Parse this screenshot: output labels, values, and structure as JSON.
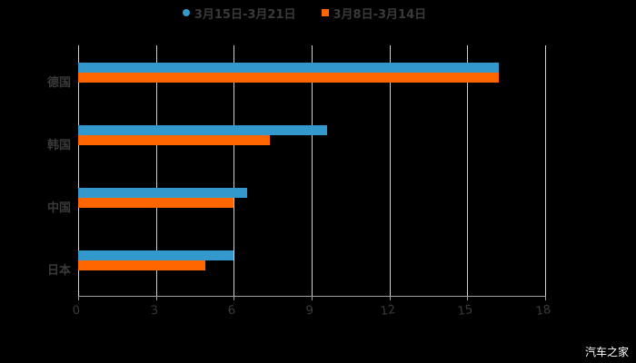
{
  "chart_data": {
    "type": "bar",
    "orientation": "horizontal",
    "title": "",
    "xlabel": "",
    "ylabel": "",
    "categories": [
      "德国",
      "韩国",
      "中国",
      "日本"
    ],
    "series": [
      {
        "name": "3月15日-3月21日",
        "color": "#3399cc",
        "values": [
          16.2,
          9.6,
          6.5,
          6.0
        ]
      },
      {
        "name": "3月8日-3月14日",
        "color": "#ff6600",
        "values": [
          16.2,
          7.4,
          6.0,
          4.9
        ]
      }
    ],
    "xlim": [
      0,
      18
    ],
    "xticks": [
      "0",
      "3",
      "6",
      "9",
      "12",
      "15",
      "18"
    ],
    "grid": true,
    "legend_position": "top"
  },
  "legend": {
    "items": [
      {
        "label": "3月15日-3月21日",
        "color": "#3399cc"
      },
      {
        "label": "3月8日-3月14日",
        "color": "#ff6600"
      }
    ]
  },
  "watermark": "汽车之家"
}
